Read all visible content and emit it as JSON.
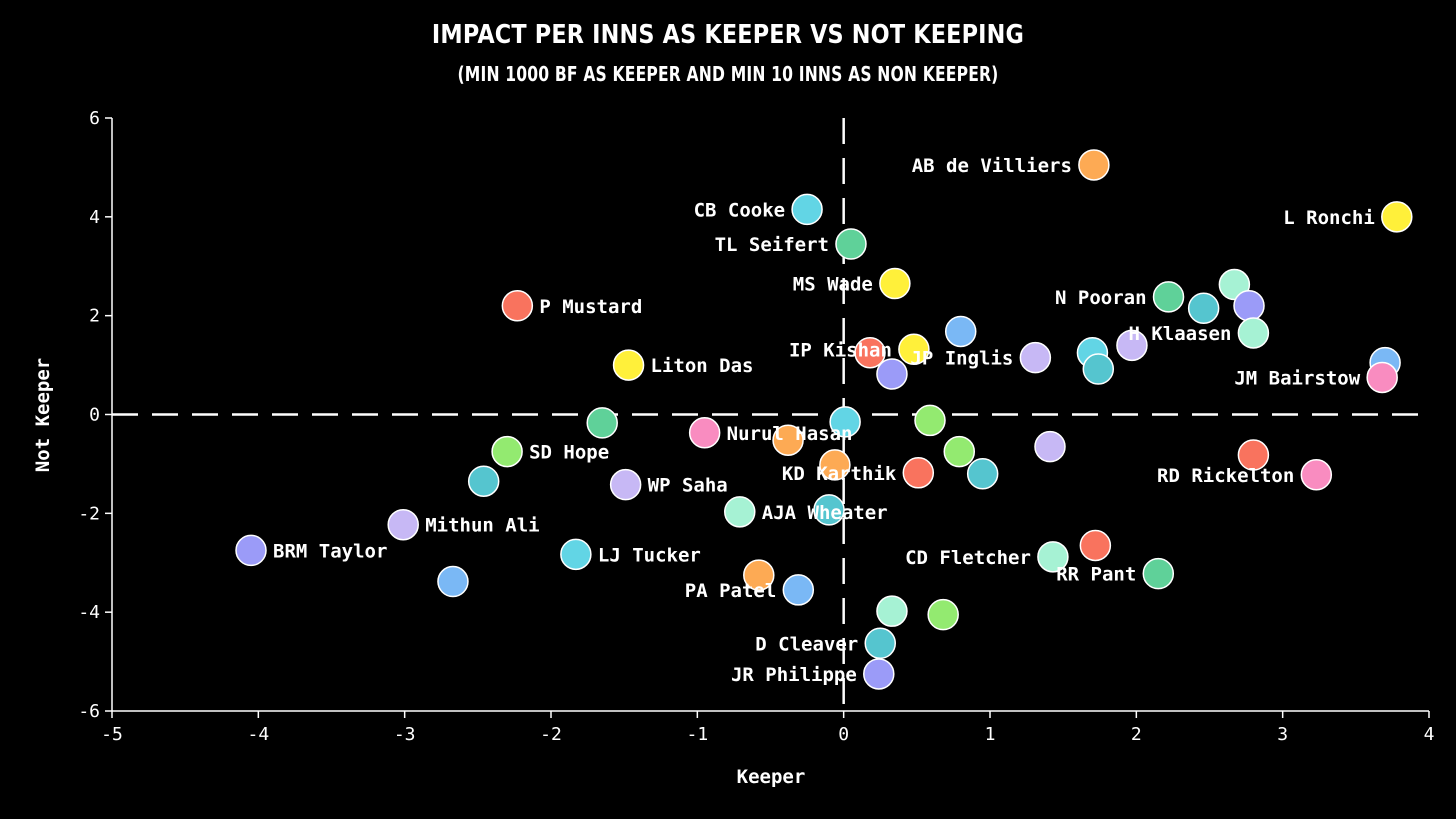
{
  "chart_data": {
    "type": "scatter",
    "title": "Impact per inns as keeper vs not keeping",
    "subtitle": "(min 1000 BF as keeper and min 10 inns as non keeper)",
    "xlabel": "Keeper",
    "ylabel": "Not Keeper",
    "xlim": [
      -5,
      4
    ],
    "ylim": [
      -6,
      6
    ],
    "x_ticks": [
      "-5",
      "-4",
      "-3",
      "-2",
      "-1",
      "0",
      "1",
      "2",
      "3",
      "4"
    ],
    "y_ticks": [
      "6",
      "4",
      "2",
      "0",
      "-2",
      "-4",
      "-6"
    ],
    "reference_lines": {
      "x": 0,
      "y": 0,
      "style": "dashed"
    },
    "grid": false,
    "points": [
      {
        "x": 1.71,
        "y": 5.05,
        "color": "#fdaa54",
        "label": "AB de Villiers",
        "label_side": "left"
      },
      {
        "x": 3.78,
        "y": 4.0,
        "color": "#fff03a",
        "label": "L Ronchi",
        "label_side": "left"
      },
      {
        "x": -0.25,
        "y": 4.15,
        "color": "#62d5e5",
        "label": "CB Cooke",
        "label_side": "left"
      },
      {
        "x": 0.05,
        "y": 3.45,
        "color": "#5fd199",
        "label": "TL Seifert",
        "label_side": "left"
      },
      {
        "x": 0.35,
        "y": 2.65,
        "color": "#fff03a",
        "label": "MS Wade",
        "label_side": "left"
      },
      {
        "x": -2.23,
        "y": 2.2,
        "color": "#f9735e",
        "label": "P Mustard",
        "label_side": "right"
      },
      {
        "x": 2.22,
        "y": 2.38,
        "color": "#5fd199",
        "label": "N Pooran",
        "label_side": "left"
      },
      {
        "x": 2.67,
        "y": 2.63,
        "color": "#a6f2d4",
        "label": "",
        "label_side": "none"
      },
      {
        "x": 2.46,
        "y": 2.15,
        "color": "#55c5cf",
        "label": "",
        "label_side": "none"
      },
      {
        "x": 2.77,
        "y": 2.2,
        "color": "#9b9bf8",
        "label": "",
        "label_side": "none"
      },
      {
        "x": 2.8,
        "y": 1.65,
        "color": "#a6f2d4",
        "label": "H Klaasen",
        "label_side": "left"
      },
      {
        "x": 1.97,
        "y": 1.4,
        "color": "#c7b8f5",
        "label": "",
        "label_side": "none"
      },
      {
        "x": 0.8,
        "y": 1.68,
        "color": "#7ab8f5",
        "label": "",
        "label_side": "none"
      },
      {
        "x": 0.48,
        "y": 1.32,
        "color": "#fff03a",
        "label": "IP Kishan",
        "label_side": "left"
      },
      {
        "x": 0.18,
        "y": 1.25,
        "color": "#f9735e",
        "label": "",
        "label_side": "none"
      },
      {
        "x": 0.33,
        "y": 0.82,
        "color": "#9b9bf8",
        "label": "",
        "label_side": "none"
      },
      {
        "x": -1.47,
        "y": 1.0,
        "color": "#fff03a",
        "label": "Liton Das",
        "label_side": "right"
      },
      {
        "x": 1.31,
        "y": 1.15,
        "color": "#c7b8f5",
        "label": "JP Inglis",
        "label_side": "left"
      },
      {
        "x": 1.7,
        "y": 1.25,
        "color": "#62d5e5",
        "label": "",
        "label_side": "none"
      },
      {
        "x": 1.74,
        "y": 0.92,
        "color": "#55c5cf",
        "label": "",
        "label_side": "none"
      },
      {
        "x": 3.7,
        "y": 1.05,
        "color": "#7ab8f5",
        "label": "",
        "label_side": "none"
      },
      {
        "x": 3.68,
        "y": 0.75,
        "color": "#f98cc0",
        "label": "JM Bairstow",
        "label_side": "left"
      },
      {
        "x": -1.65,
        "y": -0.17,
        "color": "#5fd199",
        "label": "",
        "label_side": "none"
      },
      {
        "x": 0.01,
        "y": -0.15,
        "color": "#62d5e5",
        "label": "",
        "label_side": "none"
      },
      {
        "x": 0.59,
        "y": -0.12,
        "color": "#93ea70",
        "label": "",
        "label_side": "none"
      },
      {
        "x": -0.95,
        "y": -0.37,
        "color": "#f98cc0",
        "label": "Nurul Hasan",
        "label_side": "right"
      },
      {
        "x": -0.38,
        "y": -0.52,
        "color": "#fdaa54",
        "label": "",
        "label_side": "none"
      },
      {
        "x": -2.3,
        "y": -0.75,
        "color": "#93ea70",
        "label": "SD Hope",
        "label_side": "right"
      },
      {
        "x": 0.79,
        "y": -0.75,
        "color": "#93ea70",
        "label": "",
        "label_side": "none"
      },
      {
        "x": 1.41,
        "y": -0.65,
        "color": "#c7b8f5",
        "label": "",
        "label_side": "none"
      },
      {
        "x": -0.06,
        "y": -1.02,
        "color": "#fdaa54",
        "label": "",
        "label_side": "none"
      },
      {
        "x": 0.51,
        "y": -1.18,
        "color": "#f9735e",
        "label": "KD Karthik",
        "label_side": "left"
      },
      {
        "x": 0.95,
        "y": -1.2,
        "color": "#55c5cf",
        "label": "",
        "label_side": "none"
      },
      {
        "x": 2.8,
        "y": -0.82,
        "color": "#f9735e",
        "label": "",
        "label_side": "none"
      },
      {
        "x": 3.23,
        "y": -1.22,
        "color": "#f98cc0",
        "label": "RD Rickelton",
        "label_side": "left"
      },
      {
        "x": -2.46,
        "y": -1.35,
        "color": "#55c5cf",
        "label": "",
        "label_side": "none"
      },
      {
        "x": -1.49,
        "y": -1.42,
        "color": "#c7b8f5",
        "label": "WP Saha",
        "label_side": "right"
      },
      {
        "x": -0.71,
        "y": -1.97,
        "color": "#a6f2d4",
        "label": "AJA Wheater",
        "label_side": "right"
      },
      {
        "x": -0.1,
        "y": -1.93,
        "color": "#55c5cf",
        "label": "",
        "label_side": "none"
      },
      {
        "x": -3.01,
        "y": -2.23,
        "color": "#c7b8f5",
        "label": "Mithun Ali",
        "label_side": "right"
      },
      {
        "x": -4.05,
        "y": -2.75,
        "color": "#9b9bf8",
        "label": "BRM Taylor",
        "label_side": "right"
      },
      {
        "x": -1.83,
        "y": -2.83,
        "color": "#62d5e5",
        "label": "LJ Tucker",
        "label_side": "right"
      },
      {
        "x": 1.43,
        "y": -2.88,
        "color": "#a6f2d4",
        "label": "CD Fletcher",
        "label_side": "left"
      },
      {
        "x": 1.72,
        "y": -2.65,
        "color": "#f9735e",
        "label": "",
        "label_side": "none"
      },
      {
        "x": 2.15,
        "y": -3.22,
        "color": "#5fd199",
        "label": "RR Pant",
        "label_side": "left"
      },
      {
        "x": -2.67,
        "y": -3.38,
        "color": "#7ab8f5",
        "label": "",
        "label_side": "none"
      },
      {
        "x": -0.58,
        "y": -3.25,
        "color": "#fdaa54",
        "label": "",
        "label_side": "none"
      },
      {
        "x": -0.31,
        "y": -3.55,
        "color": "#7ab8f5",
        "label": "PA Patel",
        "label_side": "left"
      },
      {
        "x": 0.33,
        "y": -3.98,
        "color": "#a6f2d4",
        "label": "",
        "label_side": "none"
      },
      {
        "x": 0.68,
        "y": -4.05,
        "color": "#93ea70",
        "label": "",
        "label_side": "none"
      },
      {
        "x": 0.25,
        "y": -4.63,
        "color": "#55c5cf",
        "label": "D Cleaver",
        "label_side": "left"
      },
      {
        "x": 0.24,
        "y": -5.25,
        "color": "#9b9bf8",
        "label": "JR Philippe",
        "label_side": "left"
      }
    ]
  }
}
